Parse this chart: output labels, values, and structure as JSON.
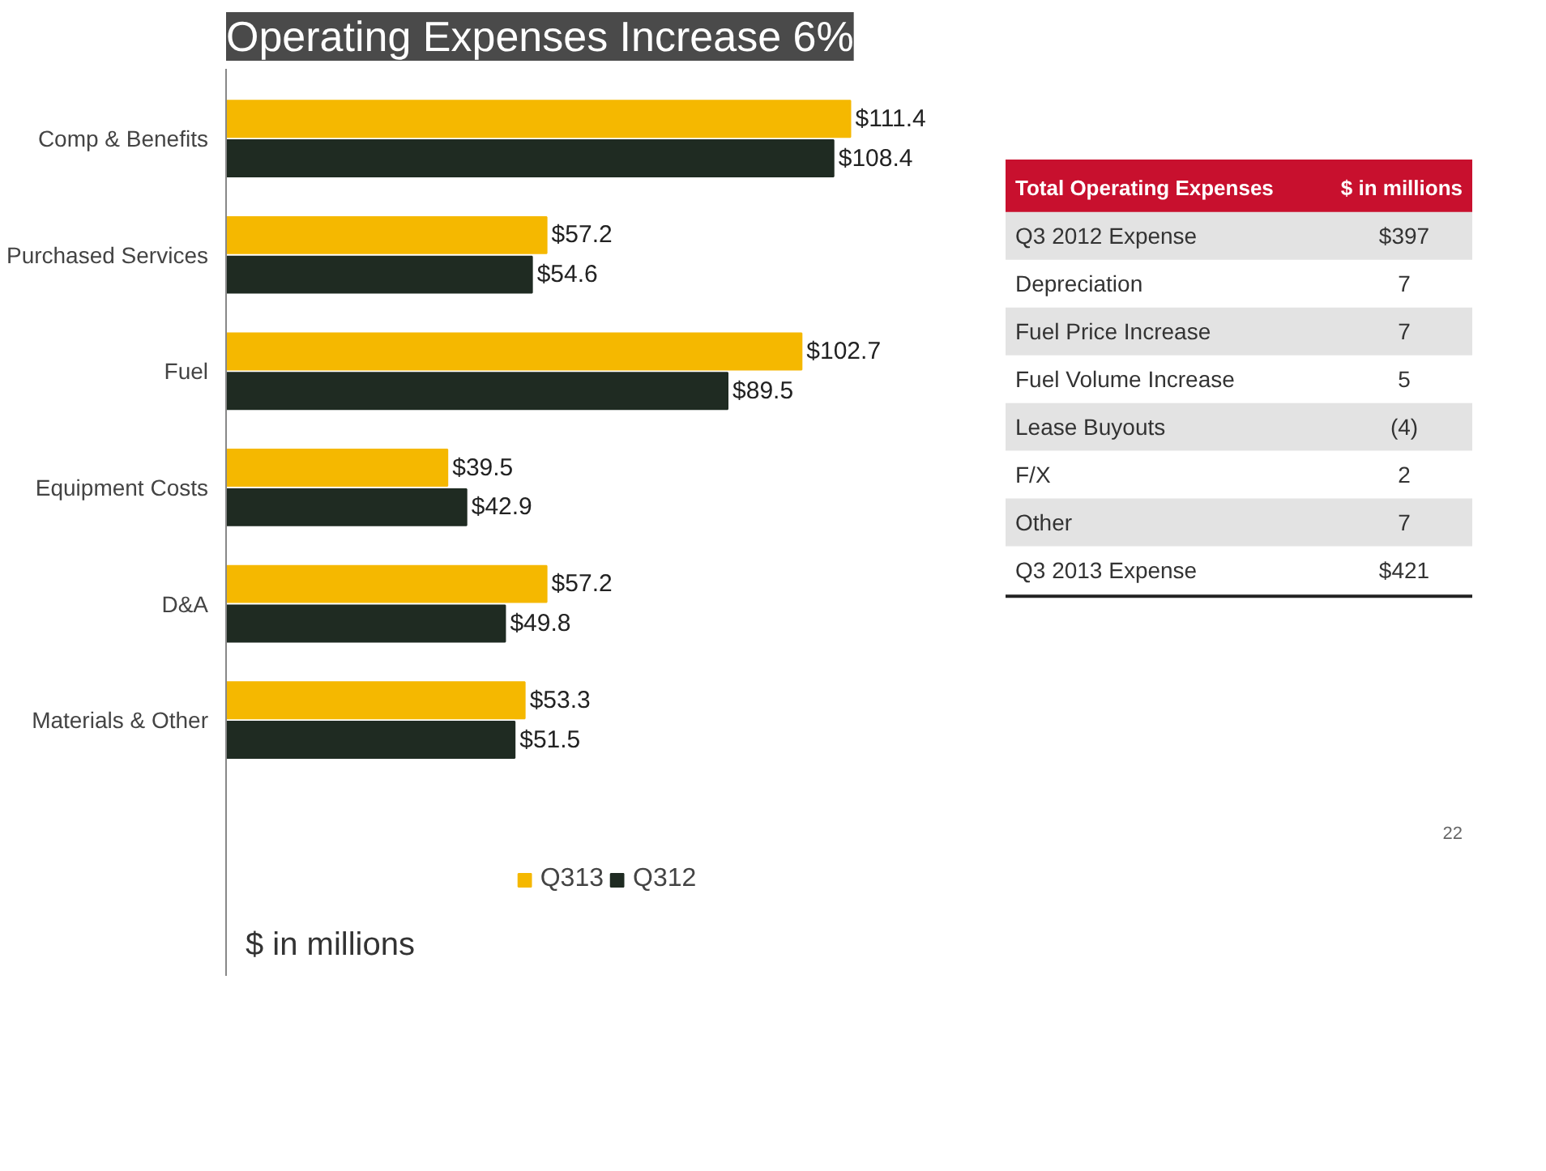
{
  "chart_data": [
    {
      "type": "bar",
      "orientation": "horizontal",
      "title": "Operating Expenses Increase 6%",
      "categories": [
        "Comp & Benefits",
        "Purchased Services",
        "Fuel",
        "Equipment Costs",
        "D&A",
        "Materials & Other"
      ],
      "series": [
        {
          "name": "Q313",
          "color": "#f5b800",
          "values": [
            111.4,
            57.2,
            102.7,
            39.5,
            57.2,
            53.3
          ],
          "value_labels": [
            "$111.4",
            "$57.2",
            "$102.7",
            "$39.5",
            "$57.2",
            "$53.3"
          ]
        },
        {
          "name": "Q312",
          "color": "#1f2b22",
          "values": [
            108.4,
            54.6,
            89.5,
            42.9,
            49.8,
            51.5
          ],
          "value_labels": [
            "$108.4",
            "$54.6",
            "$89.5",
            "$42.9",
            "$49.8",
            "$51.5"
          ]
        }
      ],
      "legend": "bottom",
      "grid": false,
      "annotations": [
        "$ in millions"
      ]
    },
    {
      "type": "other",
      "title": "Total Operating Expenses",
      "xlabel": "$ in millions",
      "categories": [
        "Q3 2012 Expense",
        "Depreciation",
        "Fuel Price Increase",
        "Fuel Volume Increase",
        "Lease Buyouts",
        "F/X",
        "Other",
        "Q3 2013 Expense"
      ],
      "value_labels": [
        "$397",
        "7",
        "7",
        "5",
        "(4)",
        "2",
        "7",
        "$421"
      ],
      "annotations": [
        "22"
      ]
    }
  ]
}
